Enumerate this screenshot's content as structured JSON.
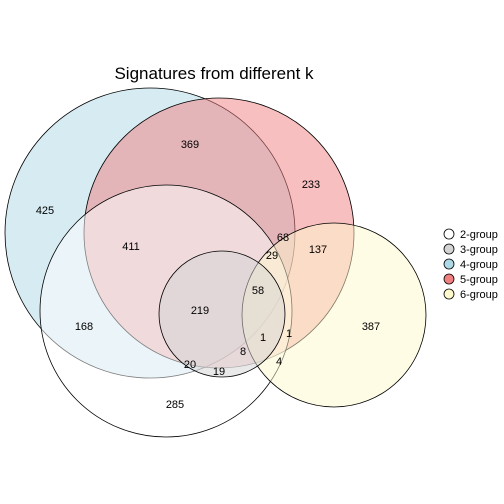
{
  "chart_data": {
    "type": "venn",
    "title": "Signatures from different k",
    "legend_position": "right",
    "sets": [
      {
        "name": "2-group",
        "color": "#FFFFFF"
      },
      {
        "name": "3-group",
        "color": "#D3D3D3"
      },
      {
        "name": "4-group",
        "color": "#ADD8E6"
      },
      {
        "name": "5-group",
        "color": "#F08080"
      },
      {
        "name": "6-group",
        "color": "#FFFACD"
      }
    ],
    "region_counts": [
      {
        "sets": [
          "4-group"
        ],
        "value": 425
      },
      {
        "sets": [
          "4-group",
          "5-group"
        ],
        "value": 369
      },
      {
        "sets": [
          "5-group"
        ],
        "value": 233
      },
      {
        "sets": [
          "2-group",
          "4-group",
          "5-group"
        ],
        "value": 411
      },
      {
        "sets": [
          "2-group",
          "5-group"
        ],
        "value": 68
      },
      {
        "sets": [
          "2-group",
          "5-group",
          "6-group"
        ],
        "value": 29
      },
      {
        "sets": [
          "5-group",
          "6-group"
        ],
        "value": 137
      },
      {
        "sets": [
          "2-group",
          "3-group",
          "5-group",
          "6-group"
        ],
        "value": 58
      },
      {
        "sets": [
          "2-group",
          "3-group",
          "4-group",
          "5-group"
        ],
        "value": 219
      },
      {
        "sets": [
          "2-group",
          "4-group"
        ],
        "value": 168
      },
      {
        "sets": [
          "6-group"
        ],
        "value": 387
      },
      {
        "sets": [
          "2-group",
          "3-group",
          "4-group",
          "5-group",
          "6-group"
        ],
        "value": 1
      },
      {
        "sets": [
          "3-group",
          "5-group",
          "6-group"
        ],
        "value": 1
      },
      {
        "sets": [
          "2-group",
          "3-group",
          "6-group"
        ],
        "value": 8
      },
      {
        "sets": [
          "2-group",
          "6-group"
        ],
        "value": 4
      },
      {
        "sets": [
          "2-group",
          "3-group"
        ],
        "value": 20
      },
      {
        "sets": [
          "3-group"
        ],
        "value": 19
      },
      {
        "sets": [
          "2-group"
        ],
        "value": 285
      }
    ]
  }
}
